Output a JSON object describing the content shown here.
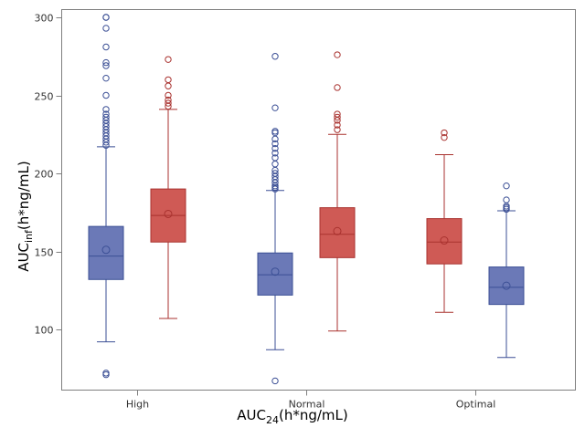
{
  "chart_data": {
    "type": "box",
    "title": "",
    "xlabel": {
      "main": "AUC",
      "sub": "24",
      "rest": "(h*ng/mL)"
    },
    "ylabel": {
      "main": "AUC",
      "sub": "inf",
      "rest": "(h*ng/mL)"
    },
    "ylim": [
      62,
      302
    ],
    "yticks": [
      100,
      150,
      200,
      250,
      300
    ],
    "categories": [
      "High",
      "Normal",
      "Optimal"
    ],
    "colors": {
      "blue": "#6b79b7",
      "blue_edge": "#3b4f95",
      "red": "#cf5a55",
      "red_edge": "#a9322f"
    },
    "boxes": [
      {
        "category": "High",
        "color": "blue",
        "offset": -1,
        "q1": 132,
        "median": 147,
        "q3": 166,
        "mean": 151,
        "whisker_low": 92,
        "whisker_high": 217,
        "outliers": [
          71,
          72,
          218,
          220,
          222,
          224,
          226,
          228,
          230,
          232,
          234,
          236,
          238,
          241,
          250,
          261,
          269,
          271,
          281,
          293,
          300,
          300
        ]
      },
      {
        "category": "High",
        "color": "red",
        "offset": 1,
        "q1": 156,
        "median": 173,
        "q3": 190,
        "mean": 174,
        "whisker_low": 107,
        "whisker_high": 241,
        "outliers": [
          243,
          245,
          247,
          250,
          256,
          260,
          273
        ]
      },
      {
        "category": "Normal",
        "color": "blue",
        "offset": -1,
        "q1": 122,
        "median": 135,
        "q3": 149,
        "mean": 137,
        "whisker_low": 87,
        "whisker_high": 189,
        "outliers": [
          67,
          190,
          191,
          192,
          194,
          196,
          198,
          200,
          202,
          206,
          210,
          213,
          216,
          219,
          222,
          226,
          227,
          242,
          275
        ]
      },
      {
        "category": "Normal",
        "color": "red",
        "offset": 1,
        "q1": 146,
        "median": 161,
        "q3": 178,
        "mean": 163,
        "whisker_low": 99,
        "whisker_high": 225,
        "outliers": [
          228,
          231,
          234,
          236,
          238,
          255,
          276
        ]
      },
      {
        "category": "Optimal",
        "color": "red",
        "offset": -1,
        "q1": 142,
        "median": 156,
        "q3": 171,
        "mean": 157,
        "whisker_low": 111,
        "whisker_high": 212,
        "outliers": [
          223,
          226
        ]
      },
      {
        "category": "Optimal",
        "color": "blue",
        "offset": 1,
        "q1": 116,
        "median": 127,
        "q3": 140,
        "mean": 128,
        "whisker_low": 82,
        "whisker_high": 176,
        "outliers": [
          177,
          178,
          179,
          183,
          192
        ]
      }
    ]
  }
}
